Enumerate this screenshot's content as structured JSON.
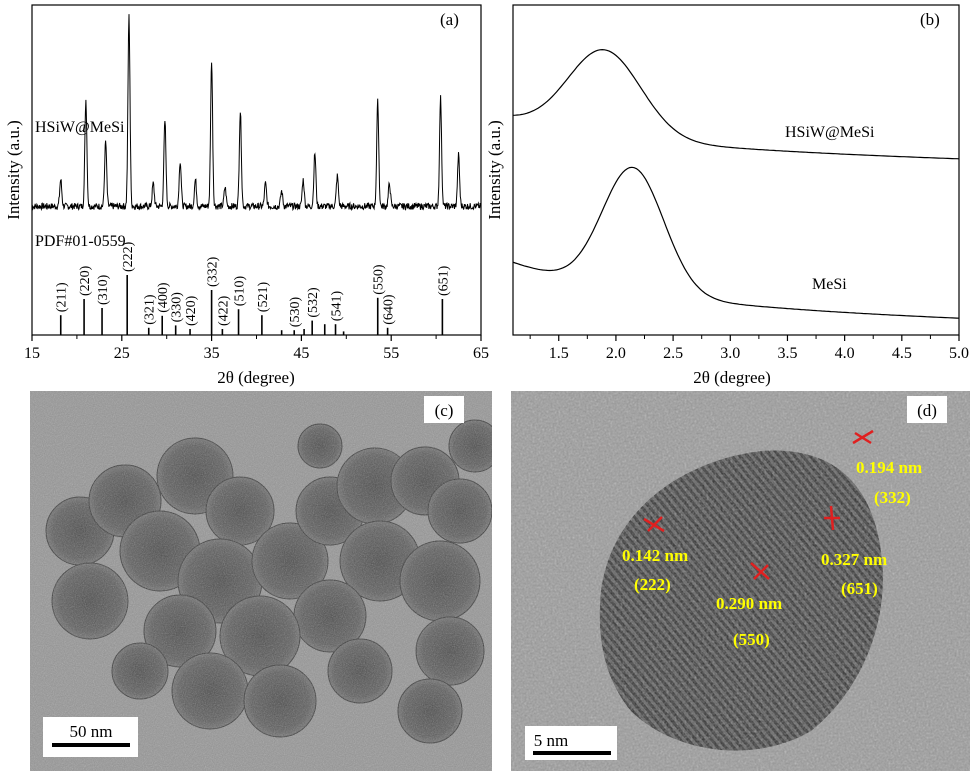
{
  "chart_data": [
    {
      "panel": "(a)",
      "type": "line",
      "ylabel": "Intensity (a.u.)",
      "xlabel": "2θ (degree)",
      "xlim": [
        15,
        65
      ],
      "xticks": [
        15,
        25,
        35,
        45,
        55,
        65
      ],
      "series": [
        {
          "name": "HSiW@MeSi",
          "peaks": [
            {
              "x": 18.2,
              "h": 0.14
            },
            {
              "x": 21.0,
              "h": 0.56
            },
            {
              "x": 23.2,
              "h": 0.34
            },
            {
              "x": 25.8,
              "h": 1.0
            },
            {
              "x": 28.5,
              "h": 0.12
            },
            {
              "x": 29.8,
              "h": 0.45
            },
            {
              "x": 31.5,
              "h": 0.24
            },
            {
              "x": 33.2,
              "h": 0.14
            },
            {
              "x": 35.0,
              "h": 0.77
            },
            {
              "x": 36.5,
              "h": 0.1
            },
            {
              "x": 38.2,
              "h": 0.5
            },
            {
              "x": 41.0,
              "h": 0.12
            },
            {
              "x": 42.8,
              "h": 0.08
            },
            {
              "x": 45.2,
              "h": 0.14
            },
            {
              "x": 46.5,
              "h": 0.28
            },
            {
              "x": 49.0,
              "h": 0.16
            },
            {
              "x": 53.5,
              "h": 0.55
            },
            {
              "x": 54.8,
              "h": 0.12
            },
            {
              "x": 60.5,
              "h": 0.57
            },
            {
              "x": 62.5,
              "h": 0.27
            }
          ]
        },
        {
          "name": "PDF#01-0559",
          "sticks": [
            {
              "x": 18.2,
              "hkl": "(211)",
              "h": 0.33
            },
            {
              "x": 20.8,
              "hkl": "(220)",
              "h": 0.6
            },
            {
              "x": 22.8,
              "hkl": "(310)",
              "h": 0.45
            },
            {
              "x": 25.6,
              "hkl": "(222)",
              "h": 1.0
            },
            {
              "x": 28.0,
              "hkl": "(321)",
              "h": 0.12
            },
            {
              "x": 29.5,
              "hkl": "(400)",
              "h": 0.32
            },
            {
              "x": 31.0,
              "hkl": "(330)",
              "h": 0.16
            },
            {
              "x": 32.6,
              "hkl": "(420)",
              "h": 0.1
            },
            {
              "x": 35.0,
              "hkl": "(332)",
              "h": 0.75
            },
            {
              "x": 36.2,
              "hkl": "(422)",
              "h": 0.1
            },
            {
              "x": 38.0,
              "hkl": "(510)",
              "h": 0.43
            },
            {
              "x": 40.6,
              "hkl": "(521)",
              "h": 0.33
            },
            {
              "x": 42.8,
              "hkl": "",
              "h": 0.08
            },
            {
              "x": 44.2,
              "hkl": "(530)",
              "h": 0.08
            },
            {
              "x": 45.3,
              "hkl": "",
              "h": 0.1
            },
            {
              "x": 46.2,
              "hkl": "(532)",
              "h": 0.24
            },
            {
              "x": 47.6,
              "hkl": "",
              "h": 0.18
            },
            {
              "x": 48.8,
              "hkl": "(541)",
              "h": 0.18
            },
            {
              "x": 49.7,
              "hkl": "",
              "h": 0.06
            },
            {
              "x": 53.5,
              "hkl": "(550)",
              "h": 0.62
            },
            {
              "x": 54.6,
              "hkl": "(640)",
              "h": 0.12
            },
            {
              "x": 60.7,
              "hkl": "(651)",
              "h": 0.6
            }
          ]
        }
      ]
    },
    {
      "panel": "(b)",
      "type": "line",
      "ylabel": "Intensity (a.u.)",
      "xlabel": "2θ (degree)",
      "xlim": [
        1.1,
        5.0
      ],
      "xticks": [
        1.5,
        2.0,
        2.5,
        3.0,
        3.5,
        4.0,
        4.5,
        5.0
      ],
      "series": [
        {
          "name": "HSiW@MeSi",
          "peak_x": 1.9,
          "baseline": 0.13,
          "peak": 1.0,
          "width": 0.45,
          "start": 0.55,
          "end": 0.0
        },
        {
          "name": "MeSi",
          "peak_x": 2.15,
          "baseline": 0.1,
          "peak": 1.0,
          "width": 0.38,
          "start": 0.58,
          "end": 0.0
        }
      ]
    }
  ],
  "images": {
    "c": {
      "label": "(c)",
      "scale_bar": "50 nm"
    },
    "d": {
      "label": "(d)",
      "scale_bar": "5 nm",
      "annotations": [
        {
          "value": "0.194 nm",
          "hkl": "(332)"
        },
        {
          "value": "0.142 nm",
          "hkl": "(222)"
        },
        {
          "value": "0.327 nm",
          "hkl": "(651)"
        },
        {
          "value": "0.290 nm",
          "hkl": "(550)"
        }
      ]
    }
  },
  "colors": {
    "annotation_text": "#ffff00",
    "annotation_marker": "#e02020"
  }
}
